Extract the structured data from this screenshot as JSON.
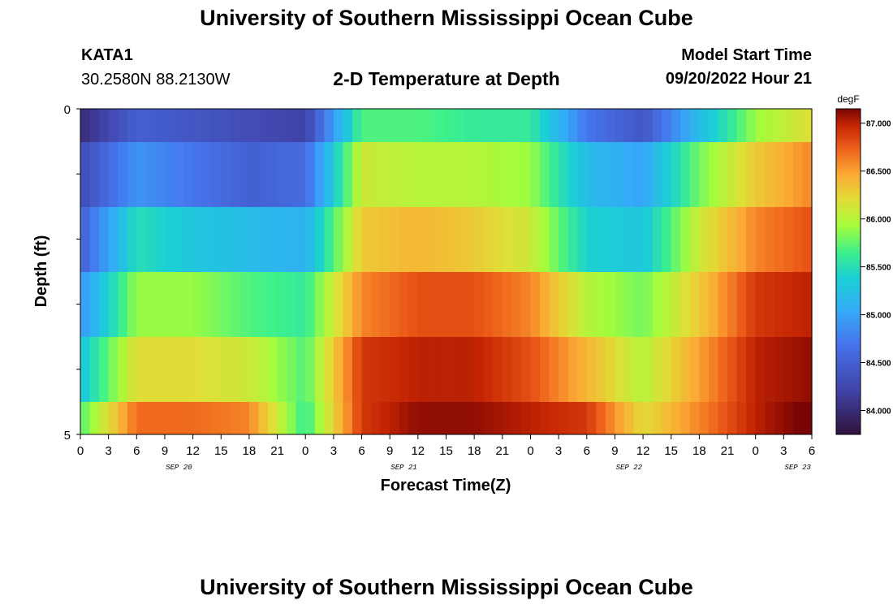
{
  "header": {
    "title": "University of Southern Mississippi Ocean Cube",
    "station": "KATA1",
    "coords": "30.2580N  88.2130W",
    "subtitle": "2-D Temperature at Depth",
    "model_label": "Model Start Time",
    "model_time": "09/20/2022 Hour 21"
  },
  "footer": {
    "title": "University of Southern Mississippi Ocean Cube"
  },
  "chart_data": {
    "type": "heatmap",
    "title": "2-D Temperature at Depth",
    "xlabel": "Forecast Time(Z)",
    "ylabel": "Depth (ft)",
    "x_tick_labels": [
      "0",
      "3",
      "6",
      "9",
      "12",
      "15",
      "18",
      "21",
      "0",
      "3",
      "6",
      "9",
      "12",
      "15",
      "18",
      "21",
      "0",
      "3",
      "6",
      "9",
      "12",
      "15",
      "18",
      "21",
      "0",
      "3",
      "6"
    ],
    "y_tick_labels": [
      "0",
      "5"
    ],
    "ylim": [
      0,
      5
    ],
    "day_labels": [
      "SEP 20",
      "SEP 21",
      "SEP 22",
      "SEP 23"
    ],
    "colorbar": {
      "unit": "degF",
      "ticks": [
        "84.000",
        "84.500",
        "85.000",
        "85.500",
        "86.000",
        "86.500",
        "87.000"
      ],
      "range": [
        83.75,
        87.15
      ]
    },
    "depth_rows_ft": [
      0,
      1,
      2,
      3,
      4,
      5
    ],
    "forecast_hours_sampled": [
      0,
      6,
      12,
      18,
      24,
      30,
      36,
      42,
      48,
      54,
      60,
      66,
      72,
      78
    ],
    "temperature_degF": [
      [
        84.0,
        84.5,
        84.4,
        84.3,
        84.2,
        85.7,
        85.7,
        85.6,
        85.6,
        84.7,
        84.4,
        85.2,
        85.9,
        86.2
      ],
      [
        84.3,
        84.9,
        84.7,
        84.5,
        84.6,
        86.1,
        86.0,
        86.0,
        85.9,
        85.2,
        85.0,
        85.8,
        86.3,
        86.6
      ],
      [
        84.5,
        85.5,
        85.3,
        85.2,
        85.1,
        86.3,
        86.4,
        86.3,
        86.1,
        85.4,
        85.3,
        86.1,
        86.6,
        86.8
      ],
      [
        84.9,
        85.9,
        85.9,
        85.7,
        85.6,
        86.6,
        86.8,
        86.8,
        86.6,
        86.0,
        85.8,
        86.3,
        86.9,
        87.0
      ],
      [
        85.3,
        86.2,
        86.2,
        86.1,
        85.7,
        86.9,
        87.0,
        87.0,
        86.8,
        86.4,
        86.0,
        86.5,
        87.0,
        87.1
      ],
      [
        85.7,
        86.7,
        86.7,
        86.6,
        85.6,
        86.9,
        87.1,
        87.1,
        87.0,
        86.9,
        86.2,
        86.6,
        87.0,
        87.2
      ]
    ]
  }
}
